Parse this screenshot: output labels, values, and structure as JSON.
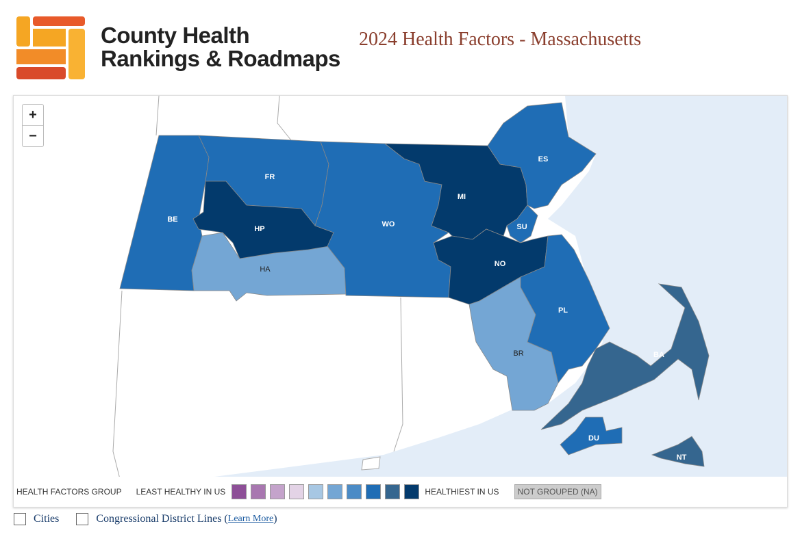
{
  "header": {
    "logo_line1": "County Health",
    "logo_line2": "Rankings & Roadmaps",
    "title": "2024 Health Factors - Massachusetts"
  },
  "map": {
    "zoom_in": "+",
    "zoom_out": "−",
    "counties": [
      {
        "label": "BE",
        "color": "#1f6db5"
      },
      {
        "label": "FR",
        "color": "#1f6db5"
      },
      {
        "label": "HP",
        "color": "#033a6c"
      },
      {
        "label": "HA",
        "color": "#74a6d4"
      },
      {
        "label": "WO",
        "color": "#1f6db5"
      },
      {
        "label": "MI",
        "color": "#033a6c"
      },
      {
        "label": "ES",
        "color": "#1f6db5"
      },
      {
        "label": "SU",
        "color": "#1f6db5"
      },
      {
        "label": "NO",
        "color": "#033a6c"
      },
      {
        "label": "PL",
        "color": "#1f6db5"
      },
      {
        "label": "BR",
        "color": "#74a6d4"
      },
      {
        "label": "BA",
        "color": "#35668f"
      },
      {
        "label": "DU",
        "color": "#1f6db5"
      },
      {
        "label": "NT",
        "color": "#35668f"
      }
    ]
  },
  "legend": {
    "title": "HEALTH FACTORS GROUP",
    "low_label": "LEAST HEALTHY IN US",
    "swatches": [
      "#8d4f97",
      "#a877b0",
      "#c4a3cb",
      "#e3d3e6",
      "#a7c7e3",
      "#74a6d4",
      "#4b8bc6",
      "#1f6db5",
      "#35668f",
      "#033a6c"
    ],
    "high_label": "HEALTHIEST IN US",
    "na_label": "NOT GROUPED (NA)"
  },
  "options": {
    "cities": "Cities",
    "districts": "Congressional District Lines (",
    "learn_more": "Learn More",
    "close": ")"
  }
}
